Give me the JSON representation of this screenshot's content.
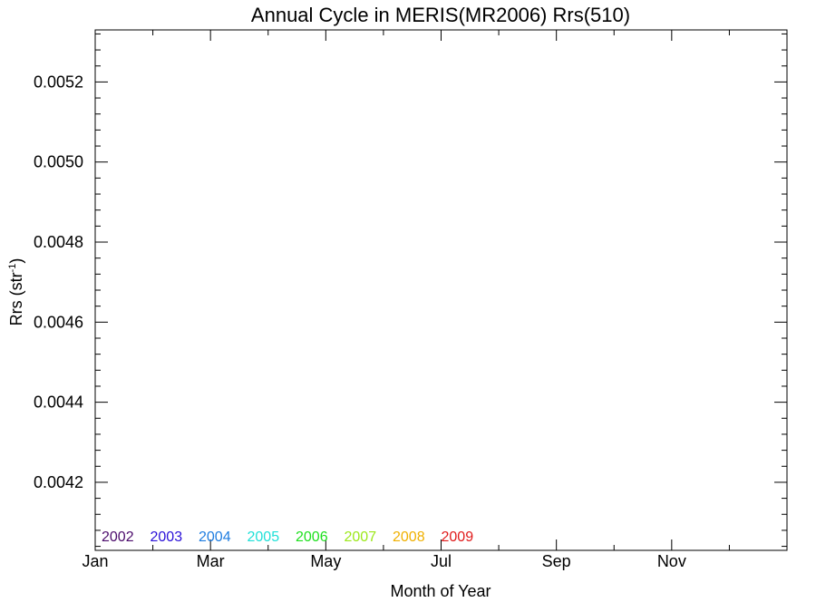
{
  "chart_data": {
    "type": "line",
    "title": "Annual Cycle in MERIS(MR2006) Rrs(510)",
    "xlabel": "Month of Year",
    "ylabel_main": "Rrs (str",
    "ylabel_sup": "-1",
    "ylabel_close": ")",
    "xlim": [
      0,
      12
    ],
    "ylim": [
      0.00403,
      0.00533
    ],
    "x_ticks": [
      {
        "value": 0,
        "label": "Jan"
      },
      {
        "value": 2,
        "label": "Mar"
      },
      {
        "value": 4,
        "label": "May"
      },
      {
        "value": 6,
        "label": "Jul"
      },
      {
        "value": 8,
        "label": "Sep"
      },
      {
        "value": 10,
        "label": "Nov"
      }
    ],
    "x_minor_ticks": [
      1,
      3,
      5,
      7,
      9,
      11
    ],
    "y_ticks": [
      {
        "value": 0.0042,
        "label": "0.0042"
      },
      {
        "value": 0.0044,
        "label": "0.0044"
      },
      {
        "value": 0.0046,
        "label": "0.0046"
      },
      {
        "value": 0.0048,
        "label": "0.0048"
      },
      {
        "value": 0.005,
        "label": "0.0050"
      },
      {
        "value": 0.0052,
        "label": "0.0052"
      }
    ],
    "y_minor_step": 4e-05,
    "grid": false,
    "legend_position": "bottom-left",
    "series": [
      {
        "name": "2002",
        "color": "#4b0b6b",
        "values": []
      },
      {
        "name": "2003",
        "color": "#2a10d8",
        "values": []
      },
      {
        "name": "2004",
        "color": "#1f7de0",
        "values": []
      },
      {
        "name": "2005",
        "color": "#1fe0d8",
        "values": []
      },
      {
        "name": "2006",
        "color": "#1ee01e",
        "values": []
      },
      {
        "name": "2007",
        "color": "#9ce81a",
        "values": []
      },
      {
        "name": "2008",
        "color": "#f0b000",
        "values": []
      },
      {
        "name": "2009",
        "color": "#e01a1a",
        "values": []
      }
    ]
  }
}
